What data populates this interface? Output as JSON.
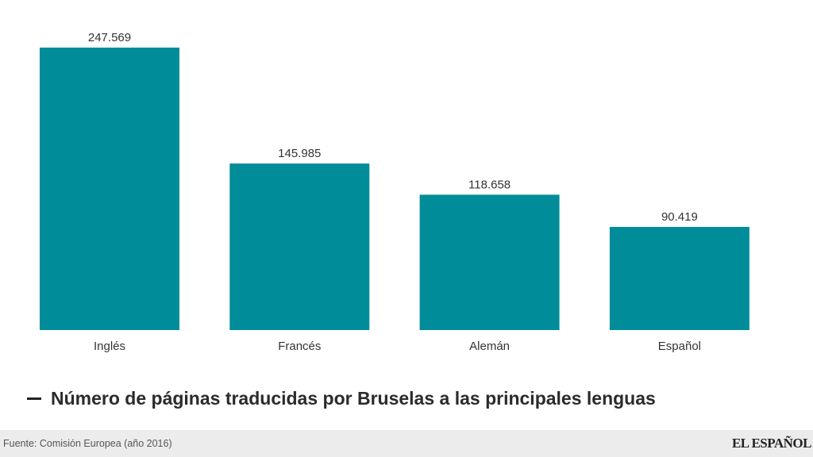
{
  "chart_data": {
    "type": "bar",
    "categories": [
      "Inglés",
      "Francés",
      "Alemán",
      "Español"
    ],
    "values": [
      247569,
      145985,
      118658,
      90419
    ],
    "value_labels": [
      "247.569",
      "145.985",
      "118.658",
      "90.419"
    ],
    "series": [
      {
        "name": "Número de páginas traducidas por Bruselas a las principales lenguas",
        "values": [
          247569,
          145985,
          118658,
          90419
        ]
      }
    ],
    "ylim": [
      0,
      247569
    ],
    "grid": false,
    "legend": "bottom-left",
    "bar_color": "#008c99"
  },
  "legend": {
    "label": "Número de páginas traducidas por Bruselas a las principales lenguas"
  },
  "footer": {
    "source": "Fuente: Comisión Europea (año 2016)",
    "brand": "EL ESPAÑOL"
  }
}
